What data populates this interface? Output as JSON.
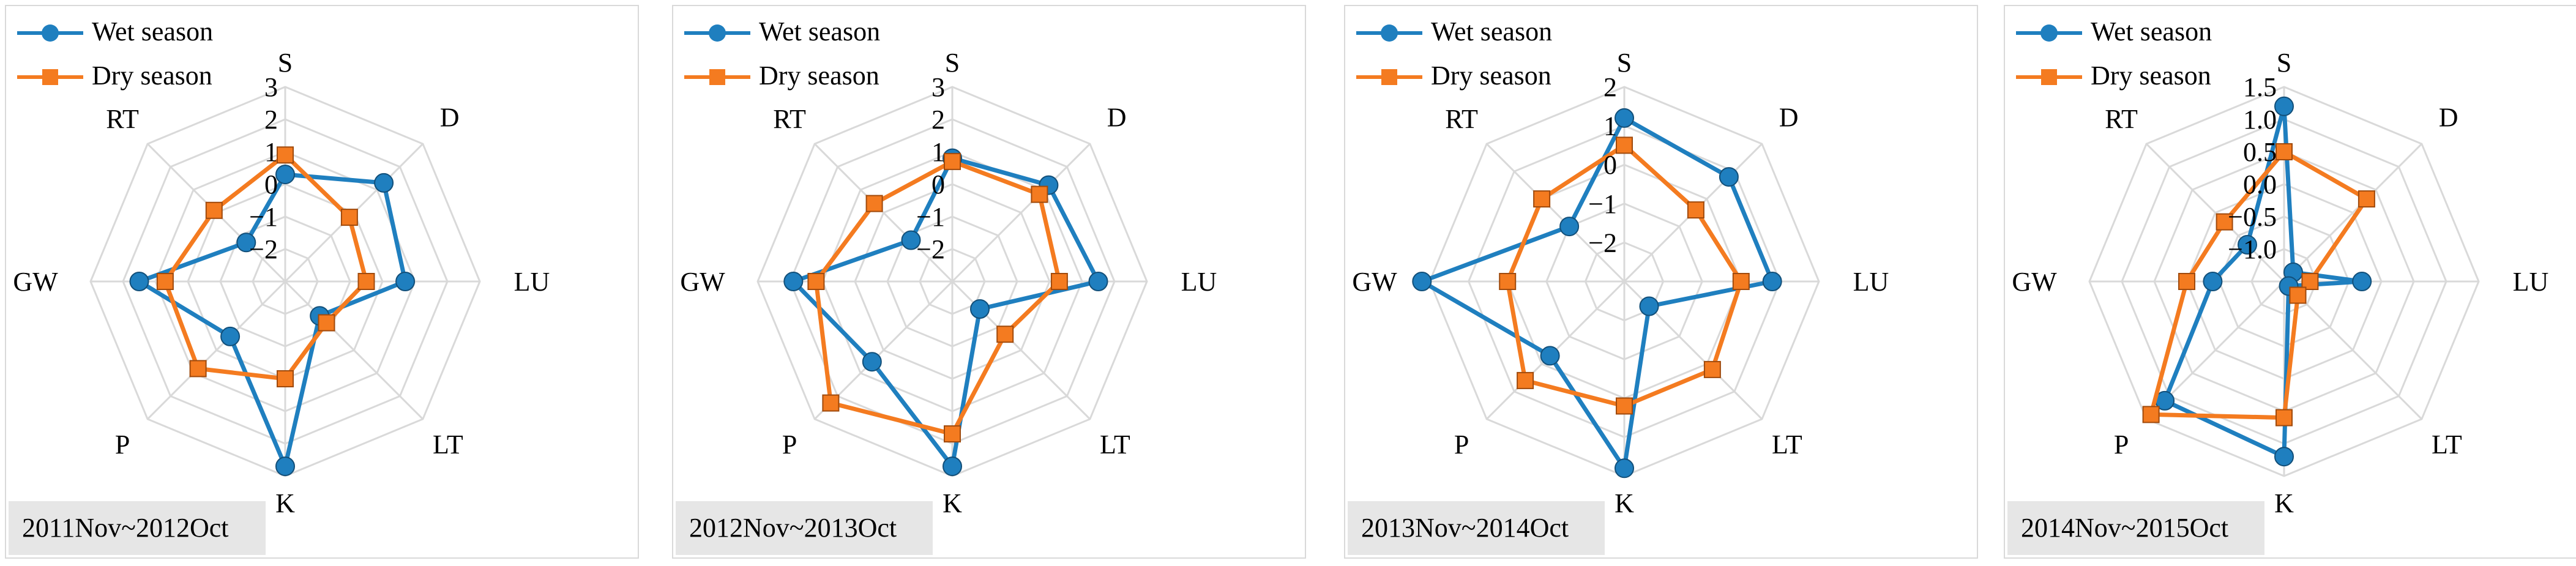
{
  "legend": {
    "wet": "Wet season",
    "dry": "Dry season"
  },
  "colors": {
    "wet": "#1f7fbf",
    "dry": "#f47b20",
    "grid": "#d9d9d9",
    "period_bg": "#e6e6e6"
  },
  "chart_data": [
    {
      "type": "radar",
      "period": "2011Nov~2012Oct",
      "axes": [
        "S",
        "D",
        "LU",
        "LT",
        "K",
        "P",
        "GW",
        "RT"
      ],
      "rmin": -3,
      "rmax": 3,
      "ticks": [
        3,
        2,
        1,
        0,
        -1,
        -2
      ],
      "tick_labels": [
        "3",
        "2",
        "1",
        "0",
        "−1",
        "−2"
      ],
      "series": [
        {
          "name": "Wet season",
          "values": [
            0.3,
            1.3,
            0.7,
            -1.5,
            2.7,
            -0.6,
            1.5,
            -1.3
          ]
        },
        {
          "name": "Dry season",
          "values": [
            0.9,
            -0.2,
            -0.5,
            -1.2,
            0.0,
            0.8,
            0.7,
            0.1
          ]
        }
      ]
    },
    {
      "type": "radar",
      "period": "2012Nov~2013Oct",
      "axes": [
        "S",
        "D",
        "LU",
        "LT",
        "K",
        "P",
        "GW",
        "RT"
      ],
      "rmin": -3,
      "rmax": 3,
      "ticks": [
        3,
        2,
        1,
        0,
        -1,
        -2
      ],
      "tick_labels": [
        "3",
        "2",
        "1",
        "0",
        "−1",
        "−2"
      ],
      "series": [
        {
          "name": "Wet season",
          "values": [
            0.8,
            1.2,
            1.5,
            -1.8,
            2.7,
            0.5,
            1.9,
            -1.2
          ]
        },
        {
          "name": "Dry season",
          "values": [
            0.7,
            0.8,
            0.3,
            -0.7,
            1.7,
            2.3,
            1.2,
            0.4
          ]
        }
      ]
    },
    {
      "type": "radar",
      "period": "2013Nov~2014Oct",
      "axes": [
        "S",
        "D",
        "LU",
        "LT",
        "K",
        "P",
        "GW",
        "RT"
      ],
      "rmin": -3,
      "rmax": 2,
      "ticks": [
        2,
        1,
        0,
        -1,
        -2
      ],
      "tick_labels": [
        "2",
        "1",
        "0",
        "−1",
        "−2"
      ],
      "series": [
        {
          "name": "Wet season",
          "values": [
            1.2,
            0.8,
            0.8,
            -2.1,
            1.8,
            -0.3,
            2.2,
            -1.0
          ]
        },
        {
          "name": "Dry season",
          "values": [
            0.5,
            -0.4,
            0.0,
            0.2,
            0.2,
            0.6,
            0.0,
            0.0
          ]
        }
      ]
    },
    {
      "type": "radar",
      "period": "2014Nov~2015Oct",
      "axes": [
        "S",
        "D",
        "LU",
        "LT",
        "K",
        "P",
        "GW",
        "RT"
      ],
      "rmin": -1.5,
      "rmax": 1.5,
      "ticks": [
        1.5,
        1.0,
        0.5,
        0.0,
        -0.5,
        -1.0
      ],
      "tick_labels": [
        "1.5",
        "1.0",
        "0.5",
        "0.0",
        "−0.5",
        "−1.0"
      ],
      "series": [
        {
          "name": "Wet season",
          "values": [
            1.2,
            -1.3,
            -0.3,
            -1.4,
            1.2,
            1.1,
            -0.4,
            -0.7
          ]
        },
        {
          "name": "Dry season",
          "values": [
            0.5,
            0.3,
            -1.1,
            -1.2,
            0.6,
            1.4,
            0.0,
            -0.2
          ]
        }
      ]
    }
  ]
}
